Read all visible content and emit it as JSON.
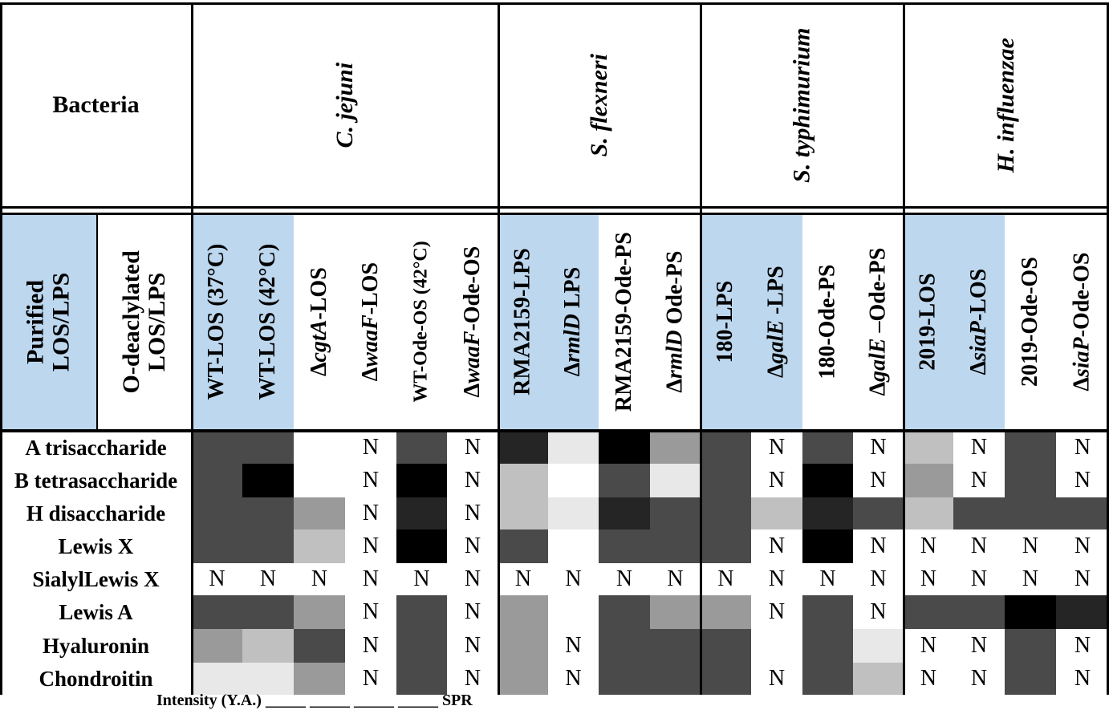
{
  "header": {
    "bacteria_label": "Bacteria",
    "purified_label": "Purified\nLOS/LPS",
    "odeacyl_label": "O-deaclylated\nLOS/LPS",
    "species": [
      {
        "name": "C. jejuni"
      },
      {
        "name": "S. flexneri"
      },
      {
        "name": "S. typhimurium"
      },
      {
        "name": "H. influenzae"
      }
    ]
  },
  "columns": [
    {
      "parts": [
        [
          "WT-LOS (37°C)",
          false
        ]
      ]
    },
    {
      "parts": [
        [
          "WT-LOS (42°C)",
          false
        ]
      ]
    },
    {
      "parts": [
        [
          "Δ",
          false
        ],
        [
          "cgtA",
          true
        ],
        [
          "-LOS",
          false
        ]
      ]
    },
    {
      "parts": [
        [
          "Δ",
          false
        ],
        [
          "waaF",
          true
        ],
        [
          "-LOS",
          false
        ]
      ]
    },
    {
      "parts": [
        [
          "WT-Ode-OS (42°C)",
          false
        ]
      ]
    },
    {
      "parts": [
        [
          "Δ",
          false
        ],
        [
          "waaF",
          true
        ],
        [
          "-Ode-OS",
          false
        ]
      ]
    },
    {
      "parts": [
        [
          "RMA2159-LPS",
          false
        ]
      ]
    },
    {
      "parts": [
        [
          "Δ",
          false
        ],
        [
          "rmlD",
          true
        ],
        [
          " LPS",
          false
        ]
      ]
    },
    {
      "parts": [
        [
          "RMA2159-Ode-PS",
          false
        ]
      ]
    },
    {
      "parts": [
        [
          "Δ",
          false
        ],
        [
          "rmlD",
          true
        ],
        [
          " Ode-PS",
          false
        ]
      ]
    },
    {
      "parts": [
        [
          "180-LPS",
          false
        ]
      ]
    },
    {
      "parts": [
        [
          "Δ",
          false
        ],
        [
          "galE",
          true
        ],
        [
          " -LPS",
          false
        ]
      ]
    },
    {
      "parts": [
        [
          "180-Ode-PS",
          false
        ]
      ]
    },
    {
      "parts": [
        [
          "Δ",
          false
        ],
        [
          "galE",
          true
        ],
        [
          " –Ode-PS",
          false
        ]
      ]
    },
    {
      "parts": [
        [
          "2019-LOS",
          false
        ]
      ]
    },
    {
      "parts": [
        [
          "Δ",
          false
        ],
        [
          "siaP",
          true
        ],
        [
          "-LOS",
          false
        ]
      ]
    },
    {
      "parts": [
        [
          "2019-Ode-OS",
          false
        ]
      ]
    },
    {
      "parts": [
        [
          "Δ",
          false
        ],
        [
          "siaP",
          true
        ],
        [
          "-Ode-OS",
          false
        ]
      ]
    }
  ],
  "rows": [
    {
      "label": "A trisaccharide",
      "cells": [
        "#4a4a4a",
        "#4a4a4a",
        "#ffffff",
        "N",
        "#4a4a4a",
        "N",
        "#252525",
        "#e8e8e8",
        "#000000",
        "#9a9a9a",
        "#4a4a4a",
        "N",
        "#4a4a4a",
        "N",
        "#c0c0c0",
        "N",
        "#4a4a4a",
        "N"
      ]
    },
    {
      "label": "B tetrasaccharide",
      "cells": [
        "#4a4a4a",
        "#000000",
        "#ffffff",
        "N",
        "#000000",
        "N",
        "#c0c0c0",
        "#ffffff",
        "#4a4a4a",
        "#e8e8e8",
        "#4a4a4a",
        "N",
        "#000000",
        "N",
        "#9a9a9a",
        "N",
        "#4a4a4a",
        "N"
      ]
    },
    {
      "label": "H disaccharide",
      "cells": [
        "#4a4a4a",
        "#4a4a4a",
        "#9a9a9a",
        "N",
        "#252525",
        "N",
        "#c0c0c0",
        "#e8e8e8",
        "#252525",
        "#4a4a4a",
        "#4a4a4a",
        "#c0c0c0",
        "#252525",
        "#4a4a4a",
        "#c0c0c0",
        "#4a4a4a",
        "#4a4a4a",
        "#4a4a4a"
      ]
    },
    {
      "label": "Lewis X",
      "cells": [
        "#4a4a4a",
        "#4a4a4a",
        "#c0c0c0",
        "N",
        "#000000",
        "N",
        "#4a4a4a",
        "#ffffff",
        "#4a4a4a",
        "#4a4a4a",
        "#4a4a4a",
        "N",
        "#000000",
        "N",
        "N",
        "N",
        "N",
        "N"
      ]
    },
    {
      "label": "SialylLewis X",
      "cells": [
        "N",
        "N",
        "N",
        "N",
        "N",
        "N",
        "N",
        "N",
        "N",
        "N",
        "N",
        "N",
        "N",
        "N",
        "N",
        "N",
        "N",
        "N"
      ]
    },
    {
      "label": "Lewis A",
      "cells": [
        "#4a4a4a",
        "#4a4a4a",
        "#9a9a9a",
        "N",
        "#4a4a4a",
        "N",
        "#9a9a9a",
        "#ffffff",
        "#4a4a4a",
        "#9a9a9a",
        "#9a9a9a",
        "N",
        "#4a4a4a",
        "N",
        "#4a4a4a",
        "#4a4a4a",
        "#000000",
        "#252525"
      ]
    },
    {
      "label": "Hyaluronin",
      "cells": [
        "#9a9a9a",
        "#c0c0c0",
        "#4a4a4a",
        "N",
        "#4a4a4a",
        "N",
        "#9a9a9a",
        "N",
        "#4a4a4a",
        "#4a4a4a",
        "#4a4a4a",
        "#ffffff",
        "#4a4a4a",
        "#e8e8e8",
        "N",
        "N",
        "#4a4a4a",
        "N"
      ]
    },
    {
      "label": "Chondroitin",
      "cells": [
        "#e8e8e8",
        "#e8e8e8",
        "#9a9a9a",
        "N",
        "#4a4a4a",
        "N",
        "#9a9a9a",
        "N",
        "#4a4a4a",
        "#4a4a4a",
        "#4a4a4a",
        "N",
        "#4a4a4a",
        "#c0c0c0",
        "N",
        "N",
        "#4a4a4a",
        "N"
      ]
    }
  ],
  "colors": {
    "purified_header_fill": "#bdd7ee",
    "line": "#000000"
  },
  "footer_text": "Intensity (Y.A.) _____ _____ _____ _____ SPR"
}
